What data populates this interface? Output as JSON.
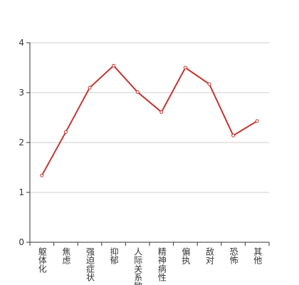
{
  "chart_data": {
    "type": "line",
    "categories": [
      "躯体化",
      "焦虑",
      "强迫症状",
      "抑郁",
      "人际关系敏感",
      "精神病性",
      "偏执",
      "敌对",
      "恐怖",
      "其他"
    ],
    "values": [
      1.34,
      2.21,
      3.1,
      3.54,
      3.01,
      2.61,
      3.5,
      3.17,
      2.14,
      2.43
    ],
    "color": "#c23531",
    "ylim": [
      0,
      4
    ],
    "yticks": [
      0,
      1,
      2,
      3,
      4
    ],
    "grid": true
  }
}
